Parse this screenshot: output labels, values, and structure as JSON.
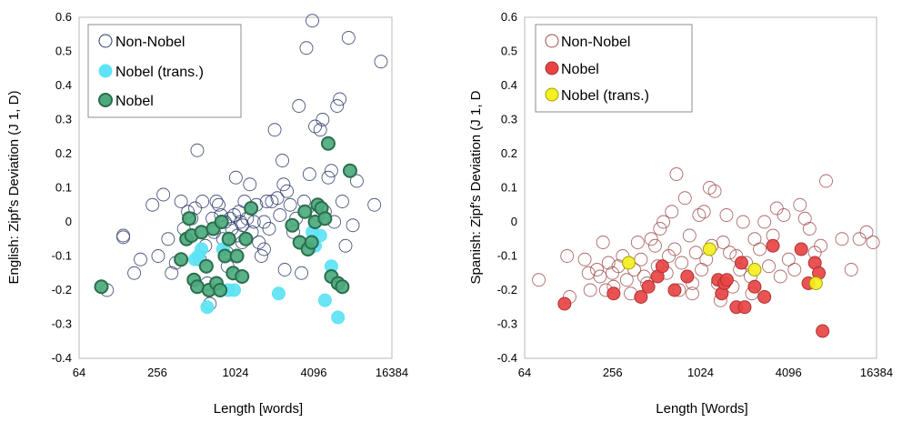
{
  "chart_data": [
    {
      "type": "scatter",
      "xlabel": "Length [words]",
      "ylabel": "English: Zipf's Deviation (J 1, D)",
      "xscale": "log2",
      "xlim": [
        64,
        16384
      ],
      "ylim": [
        -0.4,
        0.6
      ],
      "xticks": [
        "64",
        "256",
        "1024",
        "4096",
        "16384"
      ],
      "yticks": [
        "-0.4",
        "-0.3",
        "-0.2",
        "-0.1",
        "0",
        "0.1",
        "0.2",
        "0.3",
        "0.4",
        "0.5",
        "0.6"
      ],
      "grid": false,
      "legend_position": "top-left",
      "legend": [
        "Non-Nobel",
        "Nobel (trans.)",
        "Nobel"
      ],
      "series": [
        {
          "name": "Non-Nobel",
          "style": "open",
          "color": "#2b3a67",
          "points": [
            [
              105,
              -0.2
            ],
            [
              140,
              -0.04
            ],
            [
              140,
              -0.045
            ],
            [
              170,
              -0.15
            ],
            [
              190,
              -0.11
            ],
            [
              235,
              0.05
            ],
            [
              260,
              -0.1
            ],
            [
              285,
              0.08
            ],
            [
              310,
              -0.05
            ],
            [
              330,
              -0.15
            ],
            [
              355,
              -0.12
            ],
            [
              390,
              0.06
            ],
            [
              410,
              -0.02
            ],
            [
              440,
              0.03
            ],
            [
              470,
              0.01
            ],
            [
              500,
              0.04
            ],
            [
              520,
              0.21
            ],
            [
              545,
              -0.11
            ],
            [
              570,
              0.06
            ],
            [
              600,
              -0.07
            ],
            [
              620,
              -0.18
            ],
            [
              650,
              -0.24
            ],
            [
              680,
              0.01
            ],
            [
              700,
              -0.03
            ],
            [
              730,
              0.06
            ],
            [
              760,
              0.05
            ],
            [
              790,
              0.02
            ],
            [
              820,
              -0.05
            ],
            [
              850,
              0.0
            ],
            [
              890,
              -0.13
            ],
            [
              930,
              0.01
            ],
            [
              960,
              -0.02
            ],
            [
              1000,
              0.02
            ],
            [
              1030,
              0.13
            ],
            [
              1060,
              -0.04
            ],
            [
              1090,
              0.03
            ],
            [
              1120,
              0.0
            ],
            [
              1160,
              -0.01
            ],
            [
              1200,
              0.06
            ],
            [
              1260,
              0.01
            ],
            [
              1320,
              0.11
            ],
            [
              1370,
              -0.03
            ],
            [
              1420,
              0.0
            ],
            [
              1480,
              0.05
            ],
            [
              1550,
              -0.06
            ],
            [
              1620,
              -0.1
            ],
            [
              1700,
              0.0
            ],
            [
              1780,
              0.06
            ],
            [
              1860,
              -0.02
            ],
            [
              1950,
              0.06
            ],
            [
              2050,
              0.27
            ],
            [
              2150,
              0.07
            ],
            [
              2250,
              0.02
            ],
            [
              2350,
              0.18
            ],
            [
              2450,
              -0.14
            ],
            [
              2550,
              0.09
            ],
            [
              2700,
              0.05
            ],
            [
              2850,
              -0.03
            ],
            [
              3000,
              0.01
            ],
            [
              3150,
              0.34
            ],
            [
              3300,
              -0.15
            ],
            [
              3450,
              0.06
            ],
            [
              3600,
              0.51
            ],
            [
              3800,
              0.14
            ],
            [
              4000,
              0.59
            ],
            [
              4200,
              0.28
            ],
            [
              4400,
              0.02
            ],
            [
              4600,
              0.27
            ],
            [
              4800,
              0.3
            ],
            [
              5000,
              0.03
            ],
            [
              5300,
              0.13
            ],
            [
              5600,
              0.15
            ],
            [
              5900,
              0.0
            ],
            [
              6200,
              0.34
            ],
            [
              6500,
              0.36
            ],
            [
              6800,
              0.06
            ],
            [
              7200,
              -0.07
            ],
            [
              7600,
              0.54
            ],
            [
              8200,
              -0.01
            ],
            [
              8800,
              0.12
            ],
            [
              12000,
              0.05
            ],
            [
              13500,
              0.47
            ],
            [
              1150,
              -0.06
            ],
            [
              1700,
              -0.08
            ],
            [
              2400,
              0.11
            ],
            [
              880,
              -0.09
            ]
          ]
        },
        {
          "name": "Nobel (trans.)",
          "style": "filled",
          "color": "#5de3f5",
          "points": [
            [
              500,
              -0.11
            ],
            [
              530,
              -0.1
            ],
            [
              560,
              -0.08
            ],
            [
              620,
              -0.25
            ],
            [
              820,
              -0.08
            ],
            [
              900,
              -0.2
            ],
            [
              1000,
              -0.2
            ],
            [
              2200,
              -0.21
            ],
            [
              4000,
              -0.03
            ],
            [
              4600,
              -0.04
            ],
            [
              5000,
              -0.23
            ],
            [
              5600,
              -0.13
            ],
            [
              6300,
              -0.28
            ],
            [
              4200,
              -0.07
            ]
          ]
        },
        {
          "name": "Nobel",
          "style": "filled",
          "color": "#4daa7e",
          "points": [
            [
              95,
              -0.19
            ],
            [
              390,
              -0.11
            ],
            [
              430,
              -0.05
            ],
            [
              450,
              0.01
            ],
            [
              470,
              -0.04
            ],
            [
              490,
              -0.17
            ],
            [
              520,
              -0.19
            ],
            [
              560,
              -0.03
            ],
            [
              610,
              -0.13
            ],
            [
              640,
              -0.2
            ],
            [
              690,
              -0.02
            ],
            [
              730,
              -0.18
            ],
            [
              780,
              -0.2
            ],
            [
              800,
              0.0
            ],
            [
              850,
              -0.1
            ],
            [
              910,
              -0.05
            ],
            [
              980,
              -0.15
            ],
            [
              1050,
              -0.1
            ],
            [
              1150,
              -0.16
            ],
            [
              1230,
              -0.05
            ],
            [
              1350,
              0.04
            ],
            [
              2800,
              -0.01
            ],
            [
              3200,
              -0.06
            ],
            [
              3500,
              0.03
            ],
            [
              3700,
              -0.08
            ],
            [
              3950,
              -0.06
            ],
            [
              4200,
              0.0
            ],
            [
              4400,
              0.05
            ],
            [
              4700,
              0.04
            ],
            [
              5000,
              0.01
            ],
            [
              5300,
              0.23
            ],
            [
              5600,
              -0.16
            ],
            [
              6300,
              -0.18
            ],
            [
              6800,
              -0.19
            ],
            [
              7800,
              0.15
            ]
          ]
        }
      ]
    },
    {
      "type": "scatter",
      "xlabel": "Length [Words]",
      "ylabel": "Spanish: Zipf's Deviation (J 1, D",
      "xscale": "log2",
      "xlim": [
        64,
        16384
      ],
      "ylim": [
        -0.4,
        0.6
      ],
      "xticks": [
        "64",
        "256",
        "1024",
        "4096",
        "16384"
      ],
      "yticks": [
        "-0.4",
        "-0.3",
        "-0.2",
        "-0.1",
        "0",
        "0.1",
        "0.2",
        "0.3",
        "0.4",
        "0.5",
        "0.6"
      ],
      "grid": false,
      "legend_position": "top-left",
      "legend": [
        "Non-Nobel",
        "Nobel",
        "Nobel (trans.)"
      ],
      "series": [
        {
          "name": "Non-Nobel",
          "style": "open",
          "color": "#a05050",
          "points": [
            [
              80,
              -0.17
            ],
            [
              125,
              -0.1
            ],
            [
              130,
              -0.22
            ],
            [
              165,
              -0.11
            ],
            [
              175,
              -0.15
            ],
            [
              180,
              -0.2
            ],
            [
              200,
              -0.14
            ],
            [
              210,
              -0.16
            ],
            [
              220,
              -0.06
            ],
            [
              230,
              -0.2
            ],
            [
              240,
              -0.12
            ],
            [
              255,
              -0.15
            ],
            [
              260,
              -0.19
            ],
            [
              280,
              -0.13
            ],
            [
              300,
              -0.1
            ],
            [
              320,
              -0.17
            ],
            [
              340,
              -0.21
            ],
            [
              360,
              -0.14
            ],
            [
              380,
              -0.06
            ],
            [
              400,
              -0.11
            ],
            [
              420,
              -0.16
            ],
            [
              440,
              -0.18
            ],
            [
              470,
              -0.05
            ],
            [
              500,
              -0.07
            ],
            [
              520,
              -0.13
            ],
            [
              540,
              -0.02
            ],
            [
              570,
              0.0
            ],
            [
              600,
              -0.15
            ],
            [
              620,
              -0.1
            ],
            [
              650,
              0.03
            ],
            [
              680,
              -0.08
            ],
            [
              700,
              0.14
            ],
            [
              730,
              -0.2
            ],
            [
              760,
              -0.12
            ],
            [
              800,
              0.07
            ],
            [
              830,
              -0.16
            ],
            [
              860,
              -0.04
            ],
            [
              900,
              -0.21
            ],
            [
              950,
              -0.09
            ],
            [
              1000,
              0.02
            ],
            [
              1040,
              -0.14
            ],
            [
              1080,
              0.03
            ],
            [
              1120,
              -0.11
            ],
            [
              1180,
              0.1
            ],
            [
              1220,
              -0.07
            ],
            [
              1280,
              0.09
            ],
            [
              1340,
              -0.18
            ],
            [
              1400,
              -0.23
            ],
            [
              1460,
              -0.06
            ],
            [
              1540,
              0.02
            ],
            [
              1620,
              -0.09
            ],
            [
              1700,
              -0.19
            ],
            [
              1800,
              -0.1
            ],
            [
              1900,
              -0.14
            ],
            [
              2000,
              0.0
            ],
            [
              2100,
              -0.12
            ],
            [
              2250,
              -0.16
            ],
            [
              2400,
              -0.05
            ],
            [
              2600,
              -0.08
            ],
            [
              2800,
              0.0
            ],
            [
              3000,
              -0.13
            ],
            [
              3200,
              -0.04
            ],
            [
              3400,
              0.04
            ],
            [
              3600,
              -0.16
            ],
            [
              3800,
              0.02
            ],
            [
              4100,
              -0.11
            ],
            [
              4500,
              -0.14
            ],
            [
              4900,
              0.05
            ],
            [
              5300,
              0.01
            ],
            [
              5700,
              -0.02
            ],
            [
              6200,
              -0.09
            ],
            [
              6800,
              -0.07
            ],
            [
              7400,
              0.12
            ],
            [
              9500,
              -0.05
            ],
            [
              11000,
              -0.14
            ],
            [
              12500,
              -0.05
            ],
            [
              14000,
              -0.03
            ],
            [
              15500,
              -0.06
            ],
            [
              900,
              -0.18
            ],
            [
              2300,
              -0.21
            ]
          ]
        },
        {
          "name": "Nobel",
          "style": "filled",
          "color": "#e84444",
          "points": [
            [
              120,
              -0.24
            ],
            [
              260,
              -0.21
            ],
            [
              400,
              -0.22
            ],
            [
              450,
              -0.19
            ],
            [
              520,
              -0.16
            ],
            [
              560,
              -0.13
            ],
            [
              680,
              -0.2
            ],
            [
              830,
              -0.16
            ],
            [
              1350,
              -0.17
            ],
            [
              1430,
              -0.21
            ],
            [
              1490,
              -0.18
            ],
            [
              1550,
              -0.17
            ],
            [
              1800,
              -0.25
            ],
            [
              1950,
              -0.12
            ],
            [
              2050,
              -0.25
            ],
            [
              2400,
              -0.19
            ],
            [
              2800,
              -0.22
            ],
            [
              3200,
              -0.07
            ],
            [
              5000,
              -0.08
            ],
            [
              5600,
              -0.18
            ],
            [
              6200,
              -0.12
            ],
            [
              6600,
              -0.15
            ],
            [
              7000,
              -0.32
            ]
          ]
        },
        {
          "name": "Nobel (trans.)",
          "style": "filled",
          "color": "#f5f020",
          "points": [
            [
              330,
              -0.12
            ],
            [
              1180,
              -0.08
            ],
            [
              2400,
              -0.14
            ],
            [
              6300,
              -0.18
            ]
          ]
        }
      ]
    }
  ]
}
